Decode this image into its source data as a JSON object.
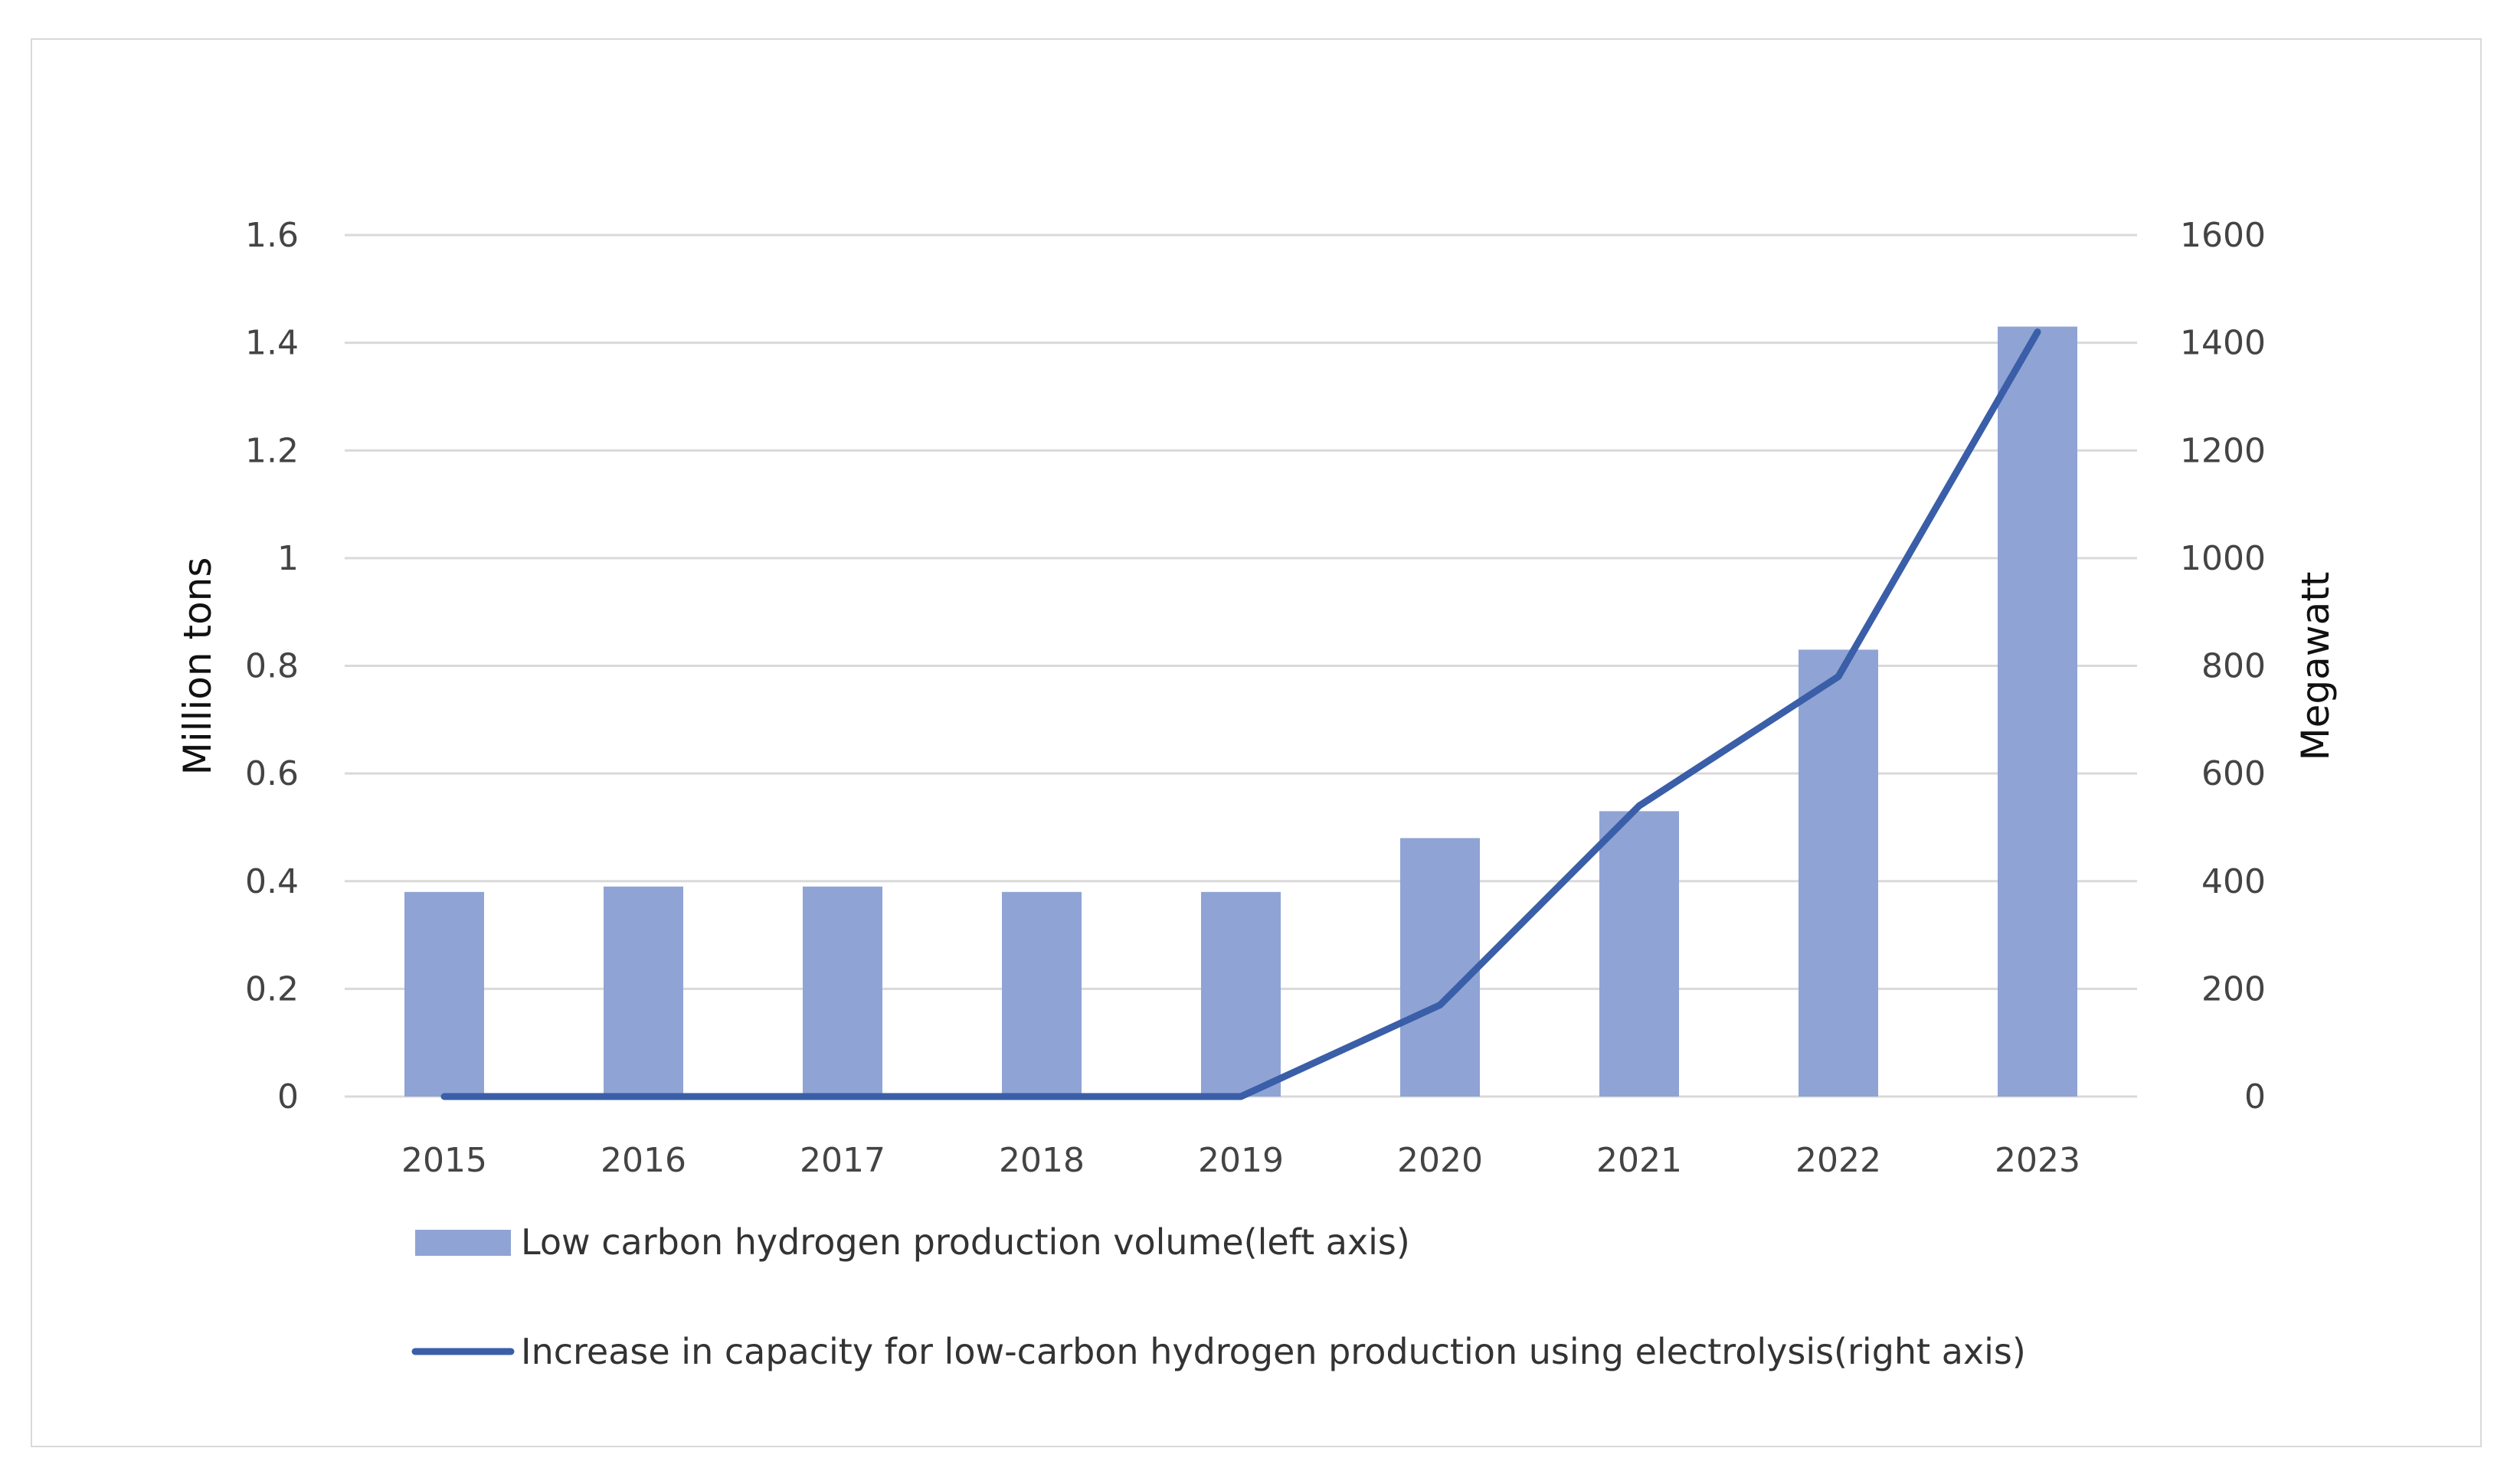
{
  "chart_data": {
    "type": "bar+line",
    "categories": [
      "2015",
      "2016",
      "2017",
      "2018",
      "2019",
      "2020",
      "2021",
      "2022",
      "2023"
    ],
    "series": [
      {
        "name": "Low carbon hydrogen production volume(left axis)",
        "type": "bar",
        "axis": "left",
        "values": [
          0.38,
          0.39,
          0.39,
          0.38,
          0.38,
          0.48,
          0.53,
          0.83,
          1.43
        ]
      },
      {
        "name": "Increase in capacity for low-carbon hydrogen production using electrolysis(right axis)",
        "type": "line",
        "axis": "right",
        "values": [
          0,
          0,
          0,
          0,
          0,
          170,
          540,
          780,
          1420
        ]
      }
    ],
    "ylabel_left": "Million tons",
    "ylabel_right": "Megawatt",
    "ylim_left": [
      0,
      1.6
    ],
    "ylim_right": [
      0,
      1600
    ],
    "yticks_left": [
      "0",
      "0.2",
      "0.4",
      "0.6",
      "0.8",
      "1",
      "1.2",
      "1.4",
      "1.6"
    ],
    "yticks_right": [
      "0",
      "200",
      "400",
      "600",
      "800",
      "1000",
      "1200",
      "1400",
      "1600"
    ],
    "grid": true,
    "legend_position": "bottom"
  },
  "colors": {
    "bar": "#8fa4d4",
    "line": "#3a5ea8",
    "grid": "#d9d9d9"
  }
}
